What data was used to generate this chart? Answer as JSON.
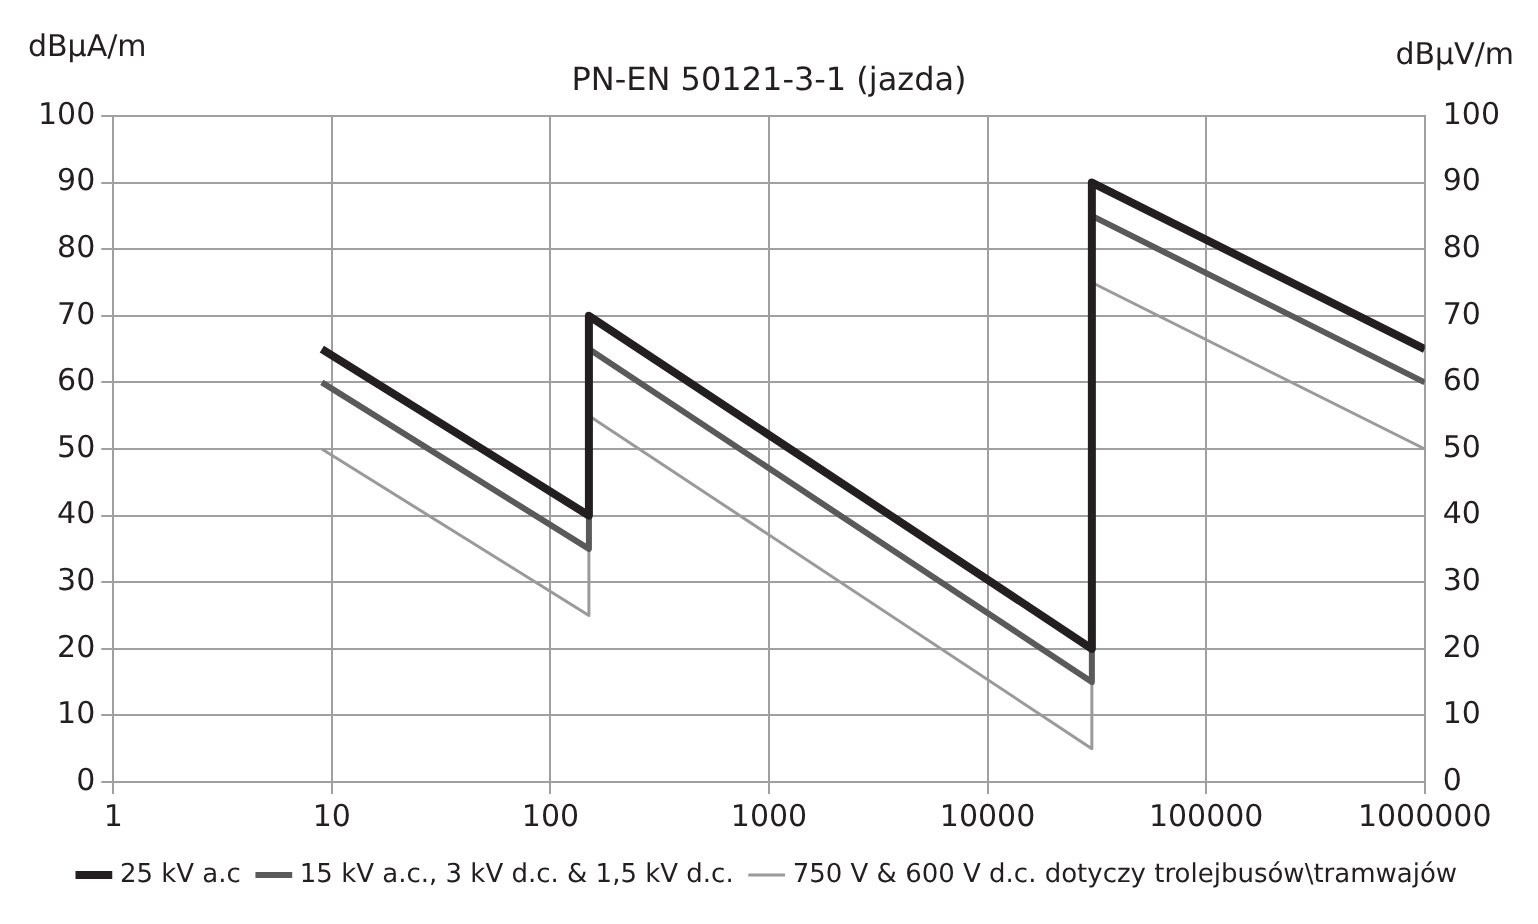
{
  "chart_data": {
    "type": "line",
    "title": "PN-EN 50121-3-1 (jazda)",
    "ylabel": "dBμA/m",
    "y2label": "dBμV/m",
    "x": [
      9,
      150,
      150,
      30000,
      30000,
      1000000
    ],
    "series": [
      {
        "name": "25 kV a.c",
        "color": "#231f20",
        "values": [
          65,
          40,
          70,
          20,
          90,
          65
        ]
      },
      {
        "name": "15 kV a.c., 3 kV d.c. & 1,5 kV d.c.",
        "color": "#5a5a5a",
        "values": [
          60,
          35,
          65,
          15,
          85,
          60
        ]
      },
      {
        "name": "750 V & 600 V d.c. dotyczy trolejbusów\\tramwajów",
        "color": "#9a9a9a",
        "values": [
          50,
          25,
          55,
          5,
          75,
          50
        ]
      }
    ],
    "log": "x",
    "xlim": [
      1,
      1000000
    ],
    "xticks": [
      1,
      10,
      100,
      1000,
      10000,
      100000,
      1000000
    ],
    "ylim": [
      0,
      100
    ],
    "yticks": [
      0,
      10,
      20,
      30,
      40,
      50,
      60,
      70,
      80,
      90,
      100
    ],
    "y2lim": [
      0,
      100
    ],
    "y2ticks": [
      0,
      10,
      20,
      30,
      40,
      50,
      60,
      70,
      80,
      90,
      100
    ],
    "grid": true,
    "legend": "bottom",
    "marker": "none",
    "line_style": "solid"
  }
}
